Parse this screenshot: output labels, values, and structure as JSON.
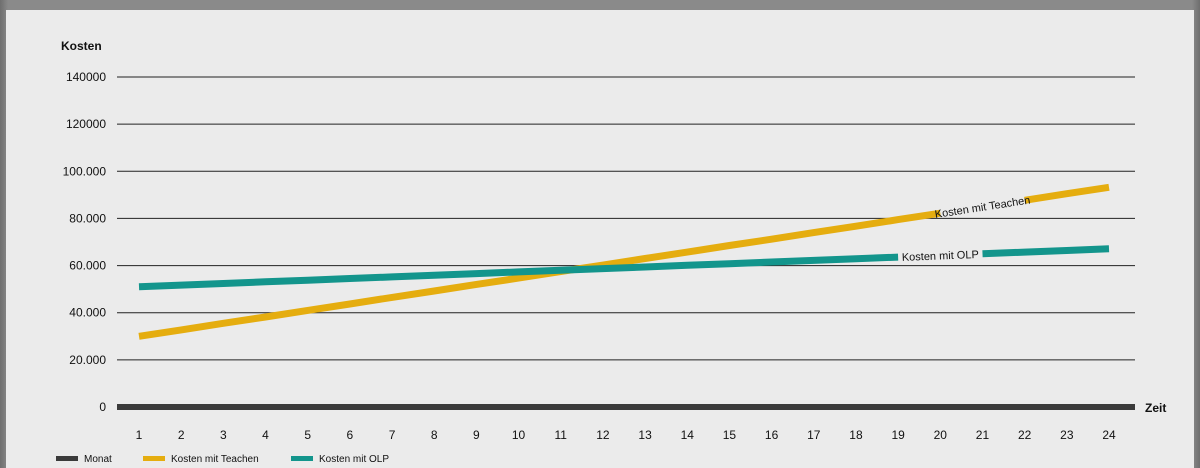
{
  "chart_data": {
    "type": "line",
    "title": "",
    "ylabel": "Kosten",
    "xlabel": "Zeit",
    "ylim": [
      0,
      140000
    ],
    "yticks": [
      {
        "value": 0,
        "label": "0"
      },
      {
        "value": 20000,
        "label": "20.000"
      },
      {
        "value": 40000,
        "label": "40.000"
      },
      {
        "value": 60000,
        "label": "60.000"
      },
      {
        "value": 80000,
        "label": "80.000"
      },
      {
        "value": 100000,
        "label": "100.000"
      },
      {
        "value": 120000,
        "label": "120000"
      },
      {
        "value": 140000,
        "label": "140000"
      }
    ],
    "categories": [
      "1",
      "2",
      "3",
      "4",
      "5",
      "6",
      "7",
      "8",
      "9",
      "10",
      "11",
      "12",
      "13",
      "14",
      "15",
      "16",
      "17",
      "18",
      "19",
      "20",
      "21",
      "22",
      "23",
      "24"
    ],
    "grid": true,
    "legend_position": "bottom-left",
    "legend": [
      {
        "label": "Monat",
        "color": "#3a3a3a"
      },
      {
        "label": "Kosten mit Teachen",
        "color": "#e5ad0f"
      },
      {
        "label": "Kosten mit OLP",
        "color": "#13958c"
      }
    ],
    "series": [
      {
        "name": "Kosten mit Teachen",
        "color": "#e5ad0f",
        "values": [
          30000,
          32700,
          35500,
          38200,
          41000,
          43700,
          46500,
          49200,
          52000,
          54700,
          57500,
          60200,
          63000,
          65700,
          68500,
          71200,
          74000,
          76700,
          79500,
          82200,
          85000,
          87700,
          90500,
          93200
        ],
        "inline_label": "Kosten mit Teachen",
        "label_after_index": 19
      },
      {
        "name": "Kosten mit OLP",
        "color": "#13958c",
        "values": [
          51000,
          51700,
          52400,
          53100,
          53800,
          54500,
          55200,
          55900,
          56600,
          57300,
          58000,
          58700,
          59400,
          60100,
          60800,
          61500,
          62200,
          62900,
          63600,
          64300,
          65000,
          65700,
          66400,
          67100
        ],
        "inline_label": "Kosten mit OLP",
        "label_after_index": 18
      }
    ]
  }
}
